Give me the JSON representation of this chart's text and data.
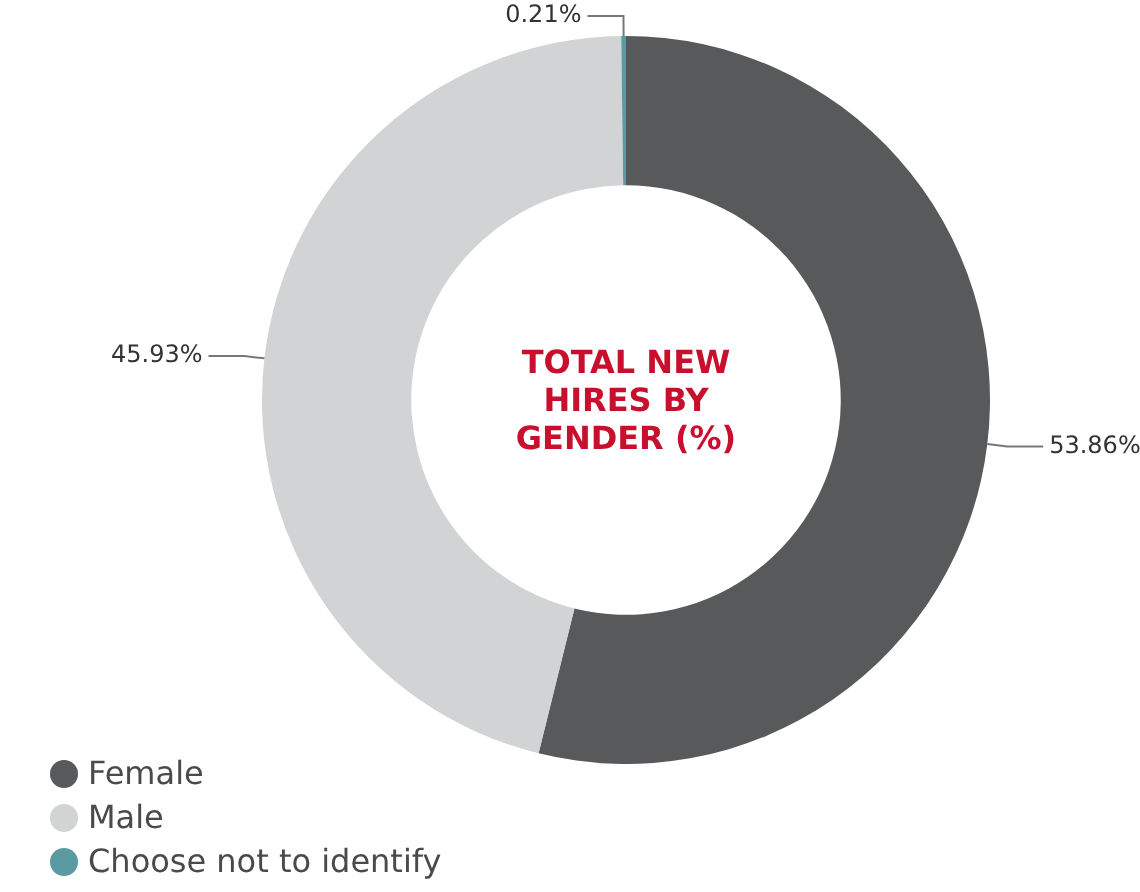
{
  "chart_data": {
    "type": "donut",
    "title": "TOTAL NEW HIRES BY GENDER (%)",
    "categories": [
      "Female",
      "Male",
      "Choose not to identify"
    ],
    "values": [
      53.86,
      45.93,
      0.21
    ],
    "colors": [
      "#58595b",
      "#d1d3d4",
      "#5b9aa0"
    ],
    "value_labels": [
      "53.86%",
      "45.93%",
      "0.21%"
    ],
    "legend": "bottom left"
  }
}
